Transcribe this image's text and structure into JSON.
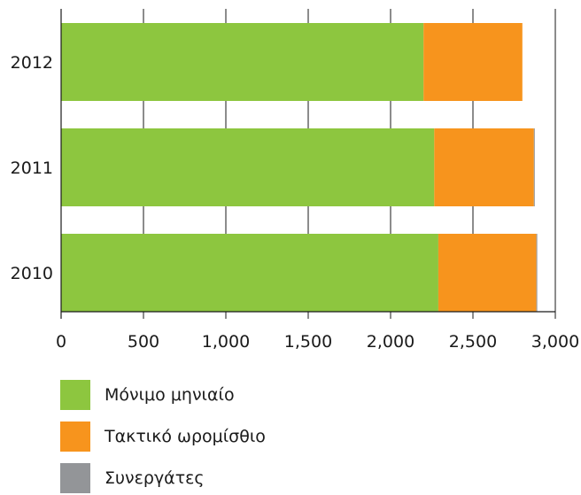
{
  "chart_data": {
    "type": "bar",
    "orientation": "horizontal",
    "stacked": true,
    "categories": [
      "2012",
      "2011",
      "2010"
    ],
    "series": [
      {
        "name": "Μόνιμο μηνιαίο",
        "color": "#8dc63f",
        "values": [
          2200,
          2265,
          2290
        ]
      },
      {
        "name": "Τακτικό ωρομίσθιο",
        "color": "#f7941d",
        "values": [
          600,
          605,
          595
        ]
      },
      {
        "name": "Συνεργάτες",
        "color": "#939598",
        "values": [
          0,
          5,
          5
        ]
      }
    ],
    "xlim": [
      0,
      3000
    ],
    "xticks": [
      "0",
      "500",
      "1,000",
      "1,500",
      "2,000",
      "2,500",
      "3,000"
    ],
    "xtick_values": [
      0,
      500,
      1000,
      1500,
      2000,
      2500,
      3000
    ],
    "grid": true,
    "legend_position": "bottom-left"
  }
}
